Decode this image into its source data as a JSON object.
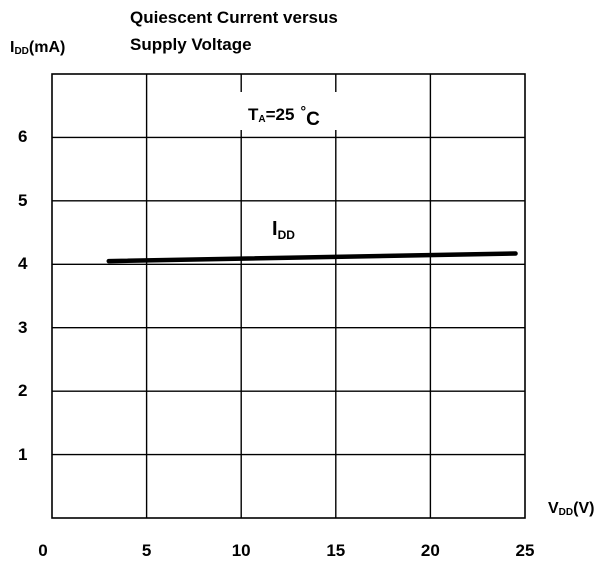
{
  "chart_data": {
    "type": "line",
    "title_line1": "Quiescent Current versus",
    "title_line2": "Supply Voltage",
    "ylabel": {
      "main": "I",
      "sub": "DD",
      "unit": "(mA)"
    },
    "xlabel": {
      "main": "V",
      "sub": "DD",
      "unit": "(V)"
    },
    "xlim": [
      0,
      25
    ],
    "ylim": [
      0,
      7
    ],
    "x_ticks": [
      0,
      5,
      10,
      15,
      20,
      25
    ],
    "y_ticks": [
      1,
      2,
      3,
      4,
      5,
      6
    ],
    "x_tick_labels": [
      "0",
      "5",
      "10",
      "15",
      "20",
      "25"
    ],
    "y_tick_labels": [
      "1",
      "2",
      "3",
      "4",
      "5",
      "6"
    ],
    "grid": true,
    "series": [
      {
        "name": "I_DD",
        "x": [
          3,
          24.5
        ],
        "y": [
          4.05,
          4.17
        ]
      }
    ],
    "annotations": {
      "temperature": {
        "main": "T",
        "sub": "A",
        "text": "=25",
        "deg": "°",
        "unit": "C"
      },
      "series_label": {
        "main": "I",
        "sub": "DD"
      }
    }
  }
}
